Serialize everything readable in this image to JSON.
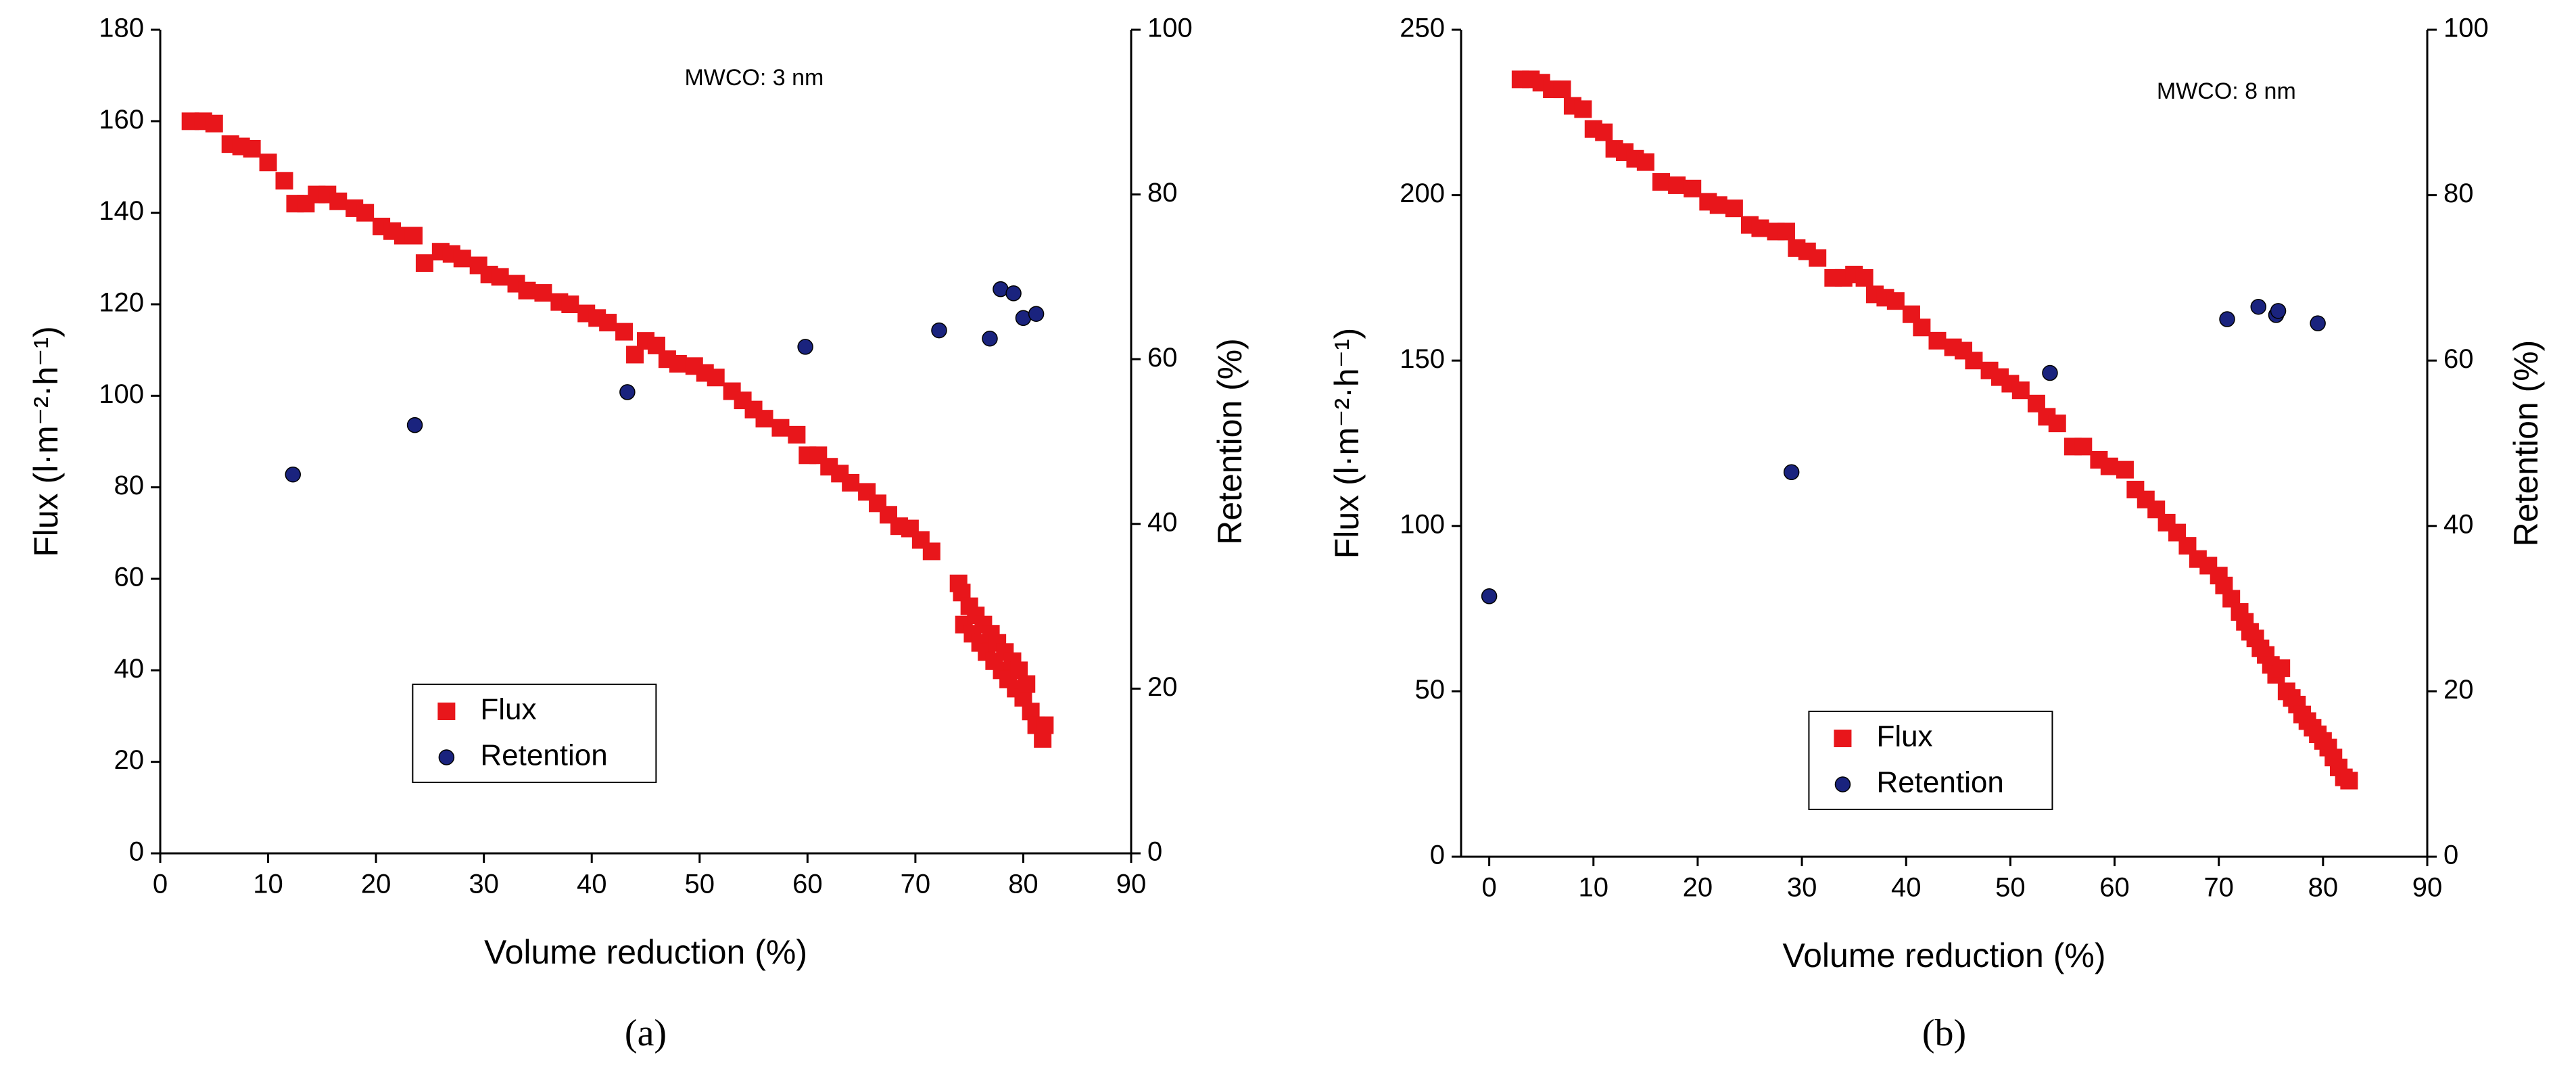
{
  "chart_data": [
    {
      "type": "scatter",
      "label": "(a)",
      "annotation": "MWCO: 3 nm",
      "xlabel": "Volume reduction (%)",
      "ylabel": "Flux (l·m⁻²·h⁻¹)",
      "y2label": "Retention (%)",
      "xlim": [
        0,
        90
      ],
      "xticks": [
        0,
        10,
        20,
        30,
        40,
        50,
        60,
        70,
        80,
        90
      ],
      "ylim": [
        0,
        180
      ],
      "yticks": [
        0,
        20,
        40,
        60,
        80,
        100,
        120,
        140,
        160,
        180
      ],
      "y2lim": [
        0,
        100
      ],
      "y2ticks": [
        0,
        20,
        40,
        60,
        80,
        100
      ],
      "legend": "lower left",
      "series": [
        {
          "name": "Flux",
          "color": "#e8161b",
          "marker": "square",
          "x": [
            2.8,
            4,
            5,
            6.5,
            7.5,
            8.5,
            10,
            11.5,
            12.5,
            13.5,
            14.5,
            15.5,
            16.5,
            18,
            19,
            20.5,
            21.5,
            22.5,
            23.5,
            24.5,
            26,
            27,
            28,
            29.5,
            30.5,
            31.5,
            33,
            34,
            35.5,
            37,
            38,
            39.5,
            40.5,
            41.5,
            43,
            44,
            45,
            46,
            47,
            48,
            49.5,
            50.5,
            51.5,
            53,
            54,
            55,
            56,
            57.5,
            59,
            60,
            61,
            62,
            63,
            64,
            65.5,
            66.5,
            67.5,
            68.5,
            69.5,
            70.5,
            71.5,
            74,
            74.3,
            74.5,
            75,
            75.3,
            75.6,
            76,
            76.3,
            76.6,
            77,
            77.3,
            77.6,
            78,
            78.3,
            78.6,
            79,
            79.3,
            79.6,
            80,
            80.3,
            80.7,
            81.2,
            81.8,
            82
          ],
          "values": [
            160,
            160,
            159.5,
            155,
            154.5,
            154,
            151,
            147,
            142,
            142,
            144,
            144,
            142.5,
            141,
            140,
            137,
            136,
            135,
            135,
            129,
            131.5,
            131,
            130,
            128.5,
            126.5,
            126,
            124.5,
            123,
            122.5,
            120.5,
            120,
            118,
            117,
            116,
            114,
            109,
            112,
            111,
            108,
            107,
            106.5,
            105,
            104,
            101,
            99,
            97,
            95,
            93,
            91.5,
            87,
            87,
            84.5,
            83,
            81,
            79,
            76.5,
            74,
            71.5,
            71,
            68.5,
            66,
            59,
            57,
            50,
            54,
            48,
            52,
            46,
            50,
            44,
            48,
            42,
            46,
            40,
            44,
            38,
            42,
            36,
            40,
            34,
            37,
            31,
            28,
            25,
            28
          ]
        },
        {
          "name": "Retention",
          "color": "#1a237e",
          "marker": "circle",
          "axis": "y2",
          "x": [
            12.3,
            23.6,
            43.3,
            59.8,
            72.2,
            76.9,
            77.9,
            79.1,
            80,
            81.2
          ],
          "values": [
            46,
            52,
            56,
            61.5,
            63.5,
            62.5,
            68.5,
            68,
            65,
            65.5
          ]
        }
      ]
    },
    {
      "type": "scatter",
      "label": "(b)",
      "annotation": "MWCO: 8 nm",
      "xlabel": "Volume reduction (%)",
      "ylabel": "Flux (l·m⁻²·h⁻¹)",
      "y2label": "Retention (%)",
      "xlim": [
        -2.7,
        90
      ],
      "xticks": [
        0,
        10,
        20,
        30,
        40,
        50,
        60,
        70,
        80,
        90
      ],
      "ylim": [
        0,
        250
      ],
      "yticks": [
        0,
        50,
        100,
        150,
        200,
        250
      ],
      "y2lim": [
        0,
        100
      ],
      "y2ticks": [
        0,
        20,
        40,
        60,
        80,
        100
      ],
      "legend": "lower center",
      "series": [
        {
          "name": "Flux",
          "color": "#e8161b",
          "marker": "square",
          "x": [
            3,
            4,
            5,
            6,
            7,
            8,
            9,
            10,
            11,
            12,
            13,
            14,
            15,
            16.5,
            18,
            19.5,
            21,
            22,
            23.5,
            25,
            26,
            27.5,
            28.5,
            29.5,
            30.5,
            31.5,
            33,
            34,
            35,
            36,
            37,
            38,
            39,
            40.5,
            41.5,
            43,
            44.5,
            45.5,
            46.5,
            48,
            49,
            50,
            51,
            52.5,
            53.5,
            54.5,
            56,
            57,
            58.5,
            59.5,
            61,
            62,
            63,
            64,
            65,
            66,
            67,
            68,
            69,
            70,
            70.5,
            71.2,
            72,
            72.5,
            73,
            73.5,
            74,
            74.5,
            75,
            75.5,
            76,
            76.5,
            77,
            77.5,
            78,
            78.5,
            79,
            79.5,
            80,
            80.5,
            81,
            81.5,
            82,
            82.5
          ],
          "values": [
            235,
            235,
            234,
            232,
            232,
            227,
            226,
            220,
            219,
            214,
            213,
            211,
            210,
            204,
            203,
            202,
            198,
            197,
            196,
            191,
            190,
            189,
            189,
            184,
            183,
            181,
            175,
            175,
            176,
            175,
            170,
            169,
            168,
            164,
            160,
            156,
            154,
            153,
            150,
            147,
            145,
            143,
            141,
            137,
            133,
            131,
            124,
            124,
            120,
            118,
            117,
            111,
            108,
            105,
            101,
            98,
            94,
            90,
            88,
            85,
            82,
            78,
            74,
            71,
            68,
            66,
            63,
            61,
            58,
            55,
            57,
            50,
            48,
            46,
            43,
            41,
            39,
            37,
            35,
            33,
            30,
            27,
            24,
            23
          ]
        },
        {
          "name": "Retention",
          "color": "#1a237e",
          "marker": "circle",
          "axis": "y2",
          "x": [
            0,
            29,
            53.8,
            70.8,
            73.8,
            75.5,
            75.7,
            79.5
          ],
          "values": [
            31.5,
            46.5,
            58.5,
            65,
            66.5,
            65.5,
            66,
            64.5
          ]
        }
      ]
    }
  ]
}
